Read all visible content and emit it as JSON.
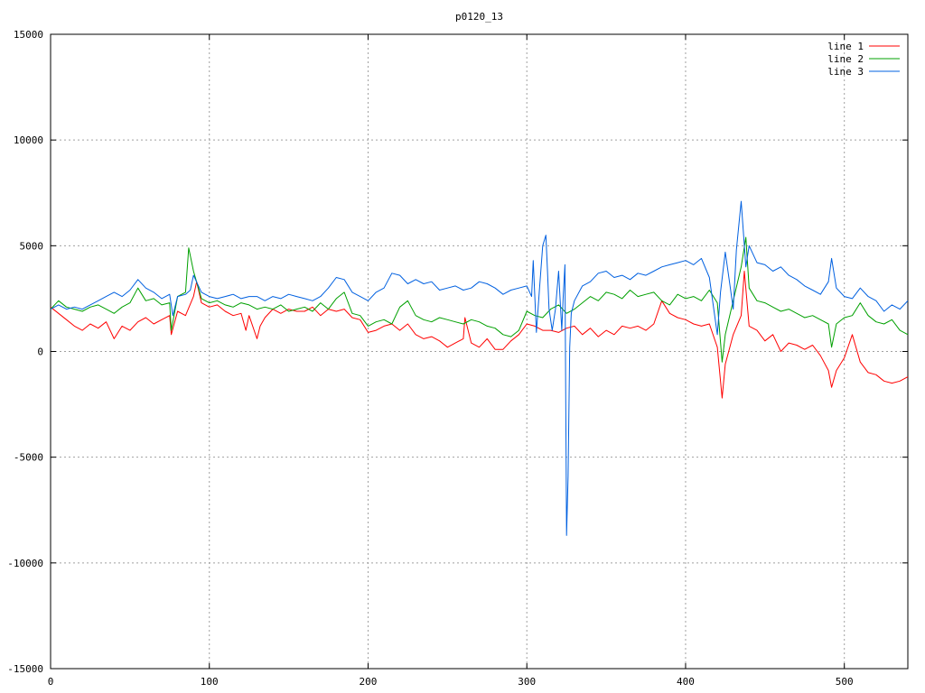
{
  "chart_data": {
    "type": "line",
    "title": "p0120_13",
    "xlabel": "",
    "ylabel": "",
    "xlim": [
      0,
      540
    ],
    "ylim": [
      -15000,
      15000
    ],
    "x_ticks": [
      0,
      100,
      200,
      300,
      400,
      500
    ],
    "y_ticks": [
      -15000,
      -10000,
      -5000,
      0,
      5000,
      10000,
      15000
    ],
    "x_tick_labels": [
      "0",
      "100",
      "200",
      "300",
      "400",
      "500"
    ],
    "y_tick_labels": [
      "-15000",
      "-10000",
      "-5000",
      "0",
      "5000",
      "10000",
      "15000"
    ],
    "grid": true,
    "legend_position": "top-right",
    "series": [
      {
        "name": "line 1",
        "color": "#ff0000",
        "x": [
          0,
          5,
          10,
          15,
          20,
          25,
          30,
          35,
          40,
          45,
          50,
          55,
          60,
          65,
          70,
          75,
          76,
          80,
          85,
          90,
          92,
          95,
          100,
          105,
          110,
          115,
          120,
          123,
          125,
          130,
          132,
          135,
          140,
          145,
          150,
          155,
          160,
          165,
          170,
          175,
          180,
          185,
          190,
          195,
          200,
          205,
          210,
          215,
          220,
          225,
          230,
          235,
          240,
          245,
          250,
          255,
          260,
          261,
          265,
          270,
          275,
          280,
          285,
          290,
          295,
          300,
          305,
          310,
          315,
          320,
          325,
          330,
          335,
          340,
          345,
          350,
          355,
          360,
          365,
          370,
          375,
          380,
          385,
          390,
          395,
          400,
          405,
          410,
          415,
          420,
          423,
          425,
          430,
          435,
          437,
          440,
          445,
          450,
          455,
          460,
          465,
          470,
          475,
          480,
          485,
          490,
          492,
          495,
          500,
          505,
          510,
          515,
          520,
          525,
          530,
          535,
          540
        ],
        "y": [
          2100,
          1800,
          1500,
          1200,
          1000,
          1300,
          1100,
          1400,
          600,
          1200,
          1000,
          1400,
          1600,
          1300,
          1500,
          1700,
          800,
          1900,
          1700,
          2600,
          3300,
          2300,
          2100,
          2200,
          1900,
          1700,
          1800,
          1000,
          1700,
          600,
          1200,
          1600,
          2000,
          1800,
          2000,
          1900,
          1900,
          2100,
          1700,
          2000,
          1900,
          2000,
          1600,
          1500,
          900,
          1000,
          1200,
          1300,
          1000,
          1300,
          800,
          600,
          700,
          500,
          200,
          400,
          600,
          1600,
          400,
          200,
          600,
          100,
          100,
          500,
          800,
          1300,
          1200,
          1000,
          1000,
          900,
          1100,
          1200,
          800,
          1100,
          700,
          1000,
          800,
          1200,
          1100,
          1200,
          1000,
          1300,
          2400,
          1800,
          1600,
          1500,
          1300,
          1200,
          1300,
          200,
          -2200,
          -600,
          800,
          1700,
          3800,
          1200,
          1000,
          500,
          800,
          0,
          400,
          300,
          100,
          300,
          -200,
          -900,
          -1700,
          -900,
          -300,
          800,
          -500,
          -1000,
          -1100,
          -1400,
          -1500,
          -1400,
          -1200
        ]
      },
      {
        "name": "line 2",
        "color": "#00a000",
        "x": [
          0,
          5,
          10,
          15,
          20,
          25,
          30,
          35,
          40,
          45,
          50,
          55,
          60,
          65,
          70,
          75,
          76,
          80,
          85,
          87,
          90,
          95,
          100,
          105,
          110,
          115,
          120,
          125,
          130,
          135,
          140,
          145,
          150,
          155,
          160,
          165,
          170,
          175,
          180,
          185,
          190,
          195,
          200,
          205,
          210,
          215,
          220,
          225,
          230,
          235,
          240,
          245,
          250,
          255,
          260,
          265,
          270,
          275,
          280,
          285,
          290,
          295,
          300,
          305,
          310,
          315,
          320,
          325,
          330,
          335,
          340,
          345,
          350,
          355,
          360,
          365,
          370,
          375,
          380,
          385,
          390,
          395,
          400,
          405,
          410,
          415,
          420,
          423,
          425,
          430,
          435,
          438,
          440,
          445,
          450,
          455,
          460,
          465,
          470,
          475,
          480,
          485,
          490,
          492,
          495,
          500,
          505,
          510,
          515,
          520,
          525,
          530,
          535,
          540
        ],
        "y": [
          2000,
          2400,
          2100,
          2000,
          1900,
          2100,
          2200,
          2000,
          1800,
          2100,
          2300,
          3000,
          2400,
          2500,
          2200,
          2300,
          1000,
          2600,
          2800,
          4900,
          3800,
          2500,
          2300,
          2400,
          2200,
          2100,
          2300,
          2200,
          2000,
          2100,
          2000,
          2200,
          1900,
          2000,
          2100,
          1900,
          2300,
          2000,
          2500,
          2800,
          1800,
          1700,
          1200,
          1400,
          1500,
          1300,
          2100,
          2400,
          1700,
          1500,
          1400,
          1600,
          1500,
          1400,
          1300,
          1500,
          1400,
          1200,
          1100,
          800,
          700,
          1000,
          1900,
          1700,
          1600,
          2000,
          2200,
          1800,
          2000,
          2300,
          2600,
          2400,
          2800,
          2700,
          2500,
          2900,
          2600,
          2700,
          2800,
          2400,
          2200,
          2700,
          2500,
          2600,
          2400,
          2900,
          2300,
          -500,
          800,
          2400,
          4000,
          5400,
          3000,
          2400,
          2300,
          2100,
          1900,
          2000,
          1800,
          1600,
          1700,
          1500,
          1300,
          200,
          1300,
          1600,
          1700,
          2300,
          1700,
          1400,
          1300,
          1500,
          1000,
          800
        ]
      },
      {
        "name": "line 3",
        "color": "#0060e0",
        "x": [
          0,
          5,
          10,
          15,
          20,
          25,
          30,
          35,
          40,
          45,
          50,
          55,
          60,
          65,
          70,
          75,
          77,
          80,
          85,
          88,
          90,
          95,
          100,
          105,
          110,
          115,
          120,
          125,
          130,
          135,
          140,
          145,
          150,
          155,
          160,
          165,
          170,
          175,
          180,
          185,
          190,
          195,
          200,
          205,
          210,
          215,
          220,
          225,
          230,
          235,
          240,
          245,
          250,
          255,
          260,
          265,
          270,
          275,
          280,
          285,
          290,
          295,
          300,
          303,
          304,
          306,
          308,
          310,
          312,
          313,
          314,
          316,
          318,
          320,
          322,
          323,
          324,
          325,
          326,
          327,
          328,
          330,
          335,
          340,
          345,
          350,
          355,
          360,
          365,
          370,
          375,
          380,
          385,
          390,
          395,
          400,
          405,
          410,
          415,
          420,
          422,
          425,
          428,
          430,
          432,
          435,
          438,
          440,
          445,
          450,
          455,
          460,
          465,
          470,
          475,
          480,
          485,
          490,
          492,
          495,
          500,
          505,
          510,
          515,
          520,
          525,
          530,
          535,
          540
        ],
        "y": [
          2000,
          2200,
          2000,
          2100,
          2000,
          2200,
          2400,
          2600,
          2800,
          2600,
          2900,
          3400,
          3000,
          2800,
          2500,
          2700,
          1700,
          2600,
          2700,
          2900,
          3600,
          2800,
          2600,
          2500,
          2600,
          2700,
          2500,
          2600,
          2600,
          2400,
          2600,
          2500,
          2700,
          2600,
          2500,
          2400,
          2600,
          3000,
          3500,
          3400,
          2800,
          2600,
          2400,
          2800,
          3000,
          3700,
          3600,
          3200,
          3400,
          3200,
          3300,
          2900,
          3000,
          3100,
          2900,
          3000,
          3300,
          3200,
          3000,
          2700,
          2900,
          3000,
          3100,
          2600,
          4300,
          900,
          3000,
          5000,
          5500,
          3800,
          2000,
          1000,
          2000,
          3800,
          1000,
          2700,
          4100,
          -8700,
          -5900,
          200,
          1800,
          2400,
          3100,
          3300,
          3700,
          3800,
          3500,
          3600,
          3400,
          3700,
          3600,
          3800,
          4000,
          4100,
          4200,
          4300,
          4100,
          4400,
          3500,
          800,
          2800,
          4700,
          3100,
          2000,
          4800,
          7100,
          4000,
          5000,
          4200,
          4100,
          3800,
          4000,
          3600,
          3400,
          3100,
          2900,
          2700,
          3300,
          4400,
          3000,
          2600,
          2500,
          3000,
          2600,
          2400,
          1900,
          2200,
          2000,
          2400
        ]
      }
    ]
  }
}
